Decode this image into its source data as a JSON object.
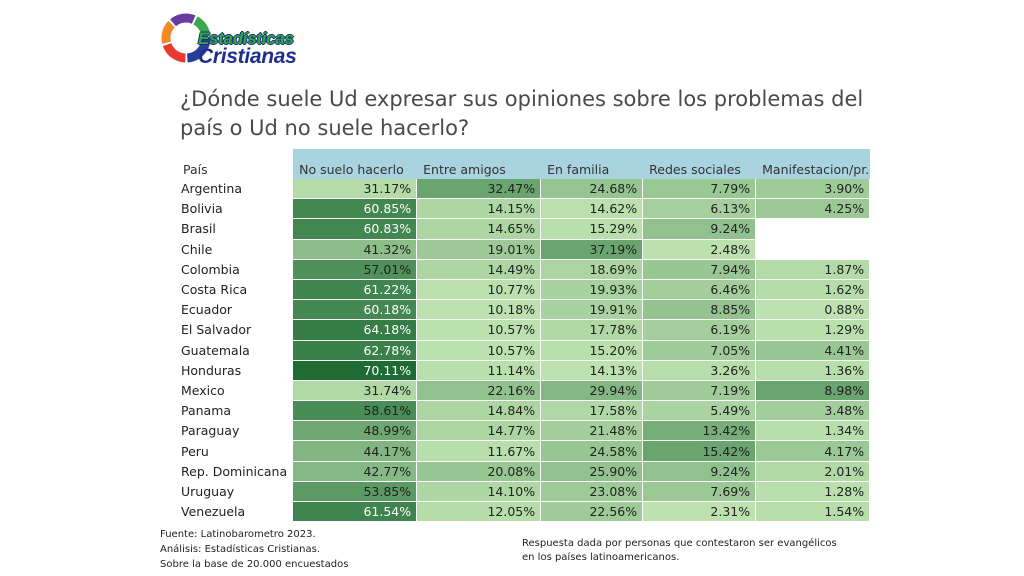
{
  "logo": {
    "line1": "Estadísticas",
    "line2": "Cristianas"
  },
  "title": "¿Dónde suele Ud expresar sus opiniones sobre los problemas del país o Ud no suele hacerlo?",
  "footer": {
    "source": "Fuente: Latinobarometro 2023.",
    "analysis": "Análisis: Estadísticas Cristianas.",
    "base": "Sobre la base de 20.000 encuestados",
    "note": "Respuesta dada por personas que contestaron ser evangélicos en los países latinoamericanos."
  },
  "chart_data": {
    "type": "heatmap",
    "row_header": "País",
    "columns": [
      "No suelo hacerlo",
      "Entre amigos",
      "En familia",
      "Redes sociales",
      "Manifestacion/pr.."
    ],
    "rows": [
      {
        "country": "Argentina",
        "values": [
          "31.17%",
          "32.47%",
          "24.68%",
          "7.79%",
          "3.90%"
        ]
      },
      {
        "country": "Bolivia",
        "values": [
          "60.85%",
          "14.15%",
          "14.62%",
          "6.13%",
          "4.25%"
        ]
      },
      {
        "country": "Brasil",
        "values": [
          "60.83%",
          "14.65%",
          "15.29%",
          "9.24%",
          ""
        ]
      },
      {
        "country": "Chile",
        "values": [
          "41.32%",
          "19.01%",
          "37.19%",
          "2.48%",
          ""
        ]
      },
      {
        "country": "Colombia",
        "values": [
          "57.01%",
          "14.49%",
          "18.69%",
          "7.94%",
          "1.87%"
        ]
      },
      {
        "country": "Costa Rica",
        "values": [
          "61.22%",
          "10.77%",
          "19.93%",
          "6.46%",
          "1.62%"
        ]
      },
      {
        "country": "Ecuador",
        "values": [
          "60.18%",
          "10.18%",
          "19.91%",
          "8.85%",
          "0.88%"
        ]
      },
      {
        "country": "El Salvador",
        "values": [
          "64.18%",
          "10.57%",
          "17.78%",
          "6.19%",
          "1.29%"
        ]
      },
      {
        "country": "Guatemala",
        "values": [
          "62.78%",
          "10.57%",
          "15.20%",
          "7.05%",
          "4.41%"
        ]
      },
      {
        "country": "Honduras",
        "values": [
          "70.11%",
          "11.14%",
          "14.13%",
          "3.26%",
          "1.36%"
        ]
      },
      {
        "country": "Mexico",
        "values": [
          "31.74%",
          "22.16%",
          "29.94%",
          "7.19%",
          "8.98%"
        ]
      },
      {
        "country": "Panama",
        "values": [
          "58.61%",
          "14.84%",
          "17.58%",
          "5.49%",
          "3.48%"
        ]
      },
      {
        "country": "Paraguay",
        "values": [
          "48.99%",
          "14.77%",
          "21.48%",
          "13.42%",
          "1.34%"
        ]
      },
      {
        "country": "Peru",
        "values": [
          "44.17%",
          "11.67%",
          "24.58%",
          "15.42%",
          "4.17%"
        ]
      },
      {
        "country": "Rep. Dominicana",
        "values": [
          "42.77%",
          "20.08%",
          "25.90%",
          "9.24%",
          "2.01%"
        ]
      },
      {
        "country": "Uruguay",
        "values": [
          "53.85%",
          "14.10%",
          "23.08%",
          "7.69%",
          "1.28%"
        ]
      },
      {
        "country": "Venezuela",
        "values": [
          "61.54%",
          "12.05%",
          "22.56%",
          "2.31%",
          "1.54%"
        ]
      }
    ],
    "colors": {
      "header": "#a9d3de",
      "low": "#c8eab8",
      "high": "#1e6b34"
    }
  }
}
